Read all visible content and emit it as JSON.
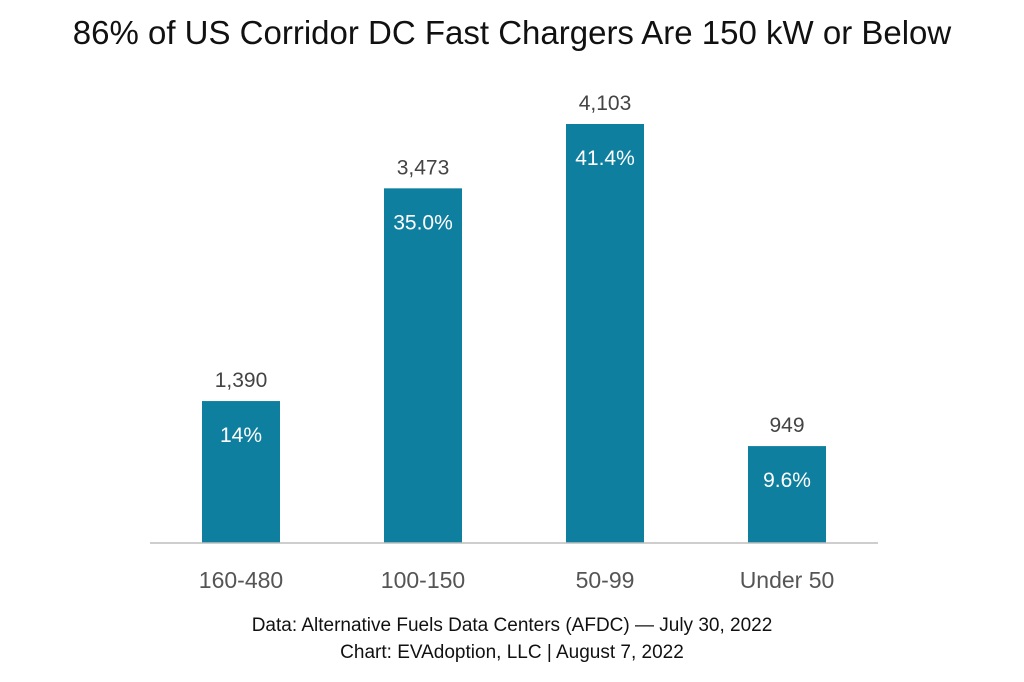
{
  "title": "86% of US Corridor DC Fast Chargers Are 150 kW or Below",
  "footer": {
    "line1": "Data: Alternative Fuels Data Centers (AFDC) — July 30, 2022",
    "line2": "Chart: EVAdoption, LLC | August 7, 2022"
  },
  "colors": {
    "bar": "#0f7f9f",
    "axis": "#bdbdbd",
    "value_text": "#444444",
    "pct_text": "#ffffff",
    "tick_text": "#555555"
  },
  "chart_data": {
    "type": "bar",
    "title": "86% of US Corridor DC Fast Chargers Are 150 kW or Below",
    "categories": [
      "160-480",
      "100-150",
      "50-99",
      "Under 50"
    ],
    "values": [
      1390,
      3473,
      4103,
      949
    ],
    "value_labels": [
      "1,390",
      "3,473",
      "4,103",
      "949"
    ],
    "percent_labels": [
      "14%",
      "35.0%",
      "41.4%",
      "9.6%"
    ],
    "xlabel": "",
    "ylabel": "",
    "ylim": [
      0,
      4103
    ],
    "grid": false,
    "legend": "none"
  }
}
